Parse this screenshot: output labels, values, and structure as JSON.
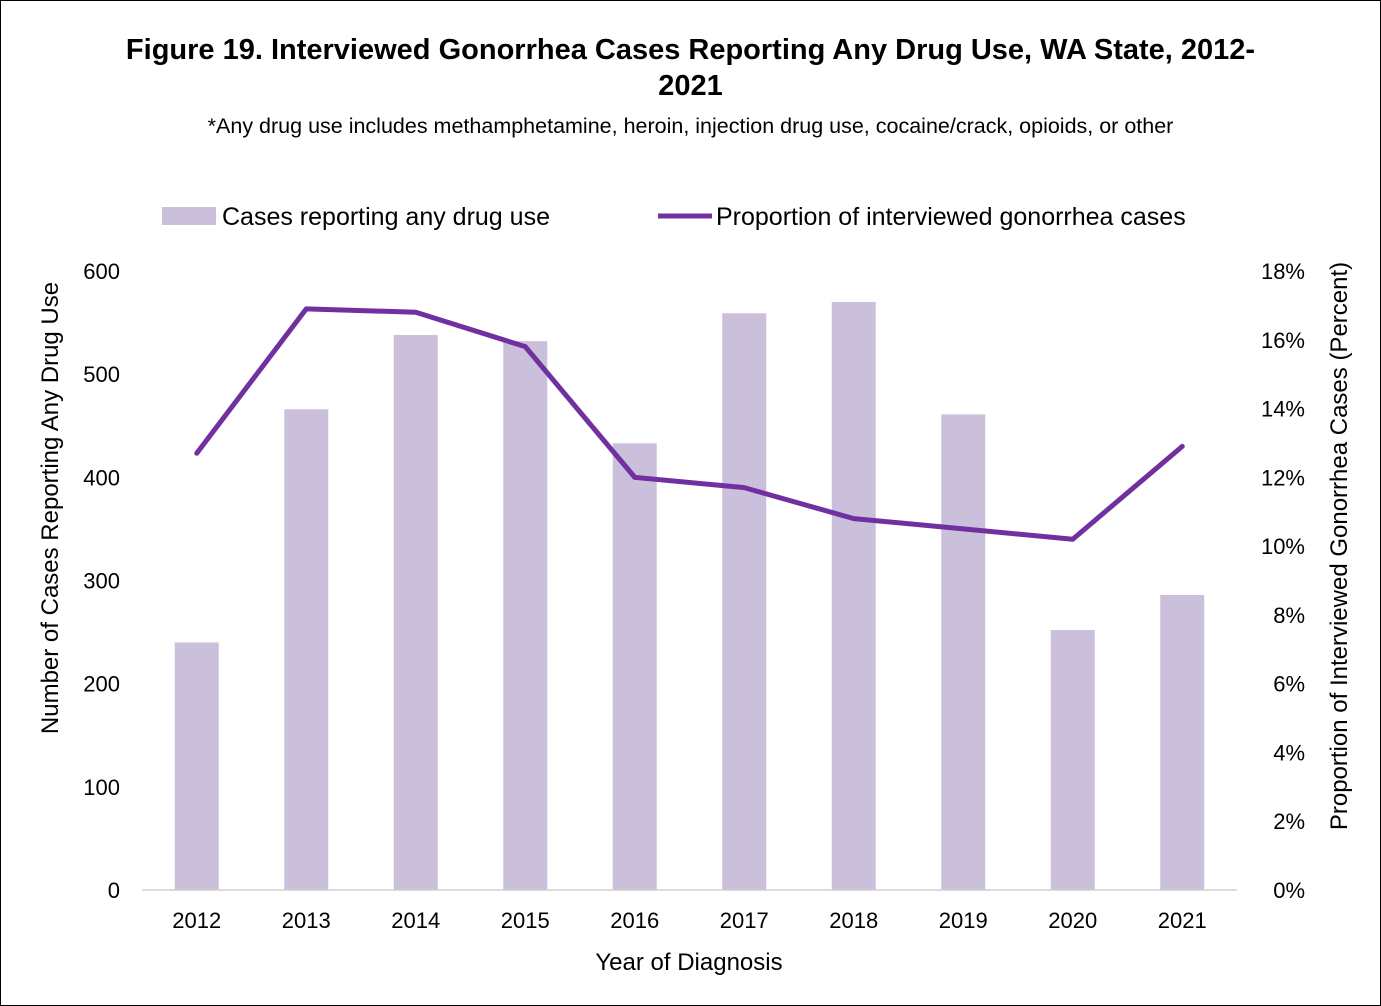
{
  "chart_data": {
    "type": "bar",
    "title": "Figure 19. Interviewed Gonorrhea Cases Reporting Any Drug Use, WA State, 2012-2021",
    "subtitle": "*Any drug use includes methamphetamine, heroin, injection drug use, cocaine/crack, opioids, or other",
    "xlabel": "Year of Diagnosis",
    "ylabel_left": "Number of Cases Reporting Any Drug Use",
    "ylabel_right": "Proportion of Interviewed Gonorrhea Cases (Percent)",
    "categories": [
      "2012",
      "2013",
      "2014",
      "2015",
      "2016",
      "2017",
      "2018",
      "2019",
      "2020",
      "2021"
    ],
    "series": [
      {
        "name": "Cases reporting any drug use",
        "type": "bar",
        "axis": "left",
        "color": "#CBC0DC",
        "values": [
          240,
          466,
          538,
          532,
          433,
          559,
          570,
          461,
          252,
          286
        ]
      },
      {
        "name": "Proportion of interviewed gonorrhea cases",
        "type": "line",
        "axis": "right",
        "color": "#7030A0",
        "values": [
          12.7,
          16.9,
          16.8,
          15.8,
          12.0,
          11.7,
          10.8,
          10.5,
          10.2,
          12.9
        ]
      }
    ],
    "ylim_left": [
      0,
      600
    ],
    "yticks_left": [
      "0",
      "100",
      "200",
      "300",
      "400",
      "500",
      "600"
    ],
    "ylim_right": [
      0,
      18
    ],
    "yticks_right": [
      "0%",
      "2%",
      "4%",
      "6%",
      "8%",
      "10%",
      "12%",
      "14%",
      "16%",
      "18%"
    ],
    "grid": false,
    "legend_position": "top"
  }
}
